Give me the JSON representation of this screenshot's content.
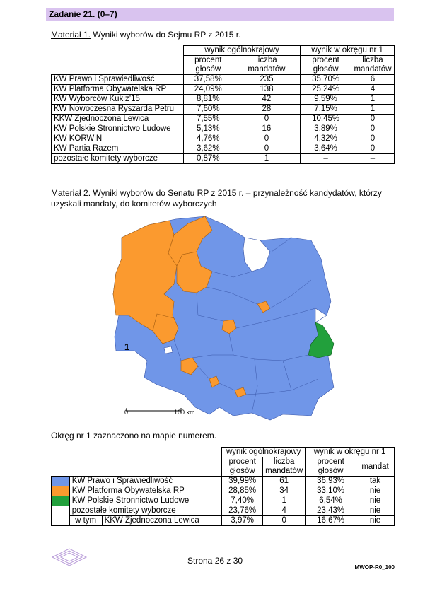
{
  "task": {
    "title": "Zadanie 21. (0–7)"
  },
  "material1": {
    "label": "Materiał 1.",
    "text": " Wyniki wyborów do Sejmu RP z 2015 r.",
    "header": {
      "group1": "wynik ogólnokrajowy",
      "group2": "wynik w okręgu nr 1"
    },
    "subheader": {
      "percent1_l1": "procent",
      "percent1_l2": "głosów",
      "seats1_l1": "liczba",
      "seats1_l2": "mandatów",
      "percent2_l1": "procent",
      "percent2_l2": "głosów",
      "seats2_l1": "liczba",
      "seats2_l2": "mandatów"
    },
    "rows": [
      {
        "name": "KW Prawo i Sprawiedliwość",
        "pct": "37,58%",
        "seats": "235",
        "pct_d": "35,70%",
        "seats_d": "6"
      },
      {
        "name": "KW Platforma Obywatelska RP",
        "pct": "24,09%",
        "seats": "138",
        "pct_d": "25,24%",
        "seats_d": "4"
      },
      {
        "name": "KW Wyborców Kukiz’15",
        "pct": "8,81%",
        "seats": "42",
        "pct_d": "9,59%",
        "seats_d": "1"
      },
      {
        "name": "KW Nowoczesna Ryszarda Petru",
        "pct": "7,60%",
        "seats": "28",
        "pct_d": "7,15%",
        "seats_d": "1"
      },
      {
        "name": "KKW Zjednoczona Lewica",
        "pct": "7,55%",
        "seats": "0",
        "pct_d": "10,45%",
        "seats_d": "0"
      },
      {
        "name": "KW Polskie Stronnictwo Ludowe",
        "pct": "5,13%",
        "seats": "16",
        "pct_d": "3,89%",
        "seats_d": "0"
      },
      {
        "name": "KW KORWiN",
        "pct": "4,76%",
        "seats": "0",
        "pct_d": "4,32%",
        "seats_d": "0"
      },
      {
        "name": "KW Partia Razem",
        "pct": "3,62%",
        "seats": "0",
        "pct_d": "3,64%",
        "seats_d": "0"
      },
      {
        "name": "pozostałe komitety wyborcze",
        "pct": "0,87%",
        "seats": "1",
        "pct_d": "–",
        "seats_d": "–"
      }
    ]
  },
  "material2": {
    "label": "Materiał 2.",
    "text_l1": " Wyniki wyborów do Senatu RP z 2015 r. – przynależność kandydatów, którzy",
    "text_l2": "uzyskali mandaty, do komitetów wyborczych",
    "district_marker": "1",
    "scale_start": "0",
    "scale_end": "100 km",
    "colors": {
      "pis": "#7096e8",
      "po": "#fb9a2f",
      "psl": "#22a03c",
      "other": "#ffffff"
    }
  },
  "okreg_note": "Okręg nr 1 zaznaczono na mapie numerem.",
  "table2": {
    "header": {
      "group1": "wynik ogólnokrajowy",
      "group2": "wynik w okręgu nr 1"
    },
    "subheader": {
      "pct1_l1": "procent",
      "pct1_l2": "głosów",
      "seats1_l1": "liczba",
      "seats1_l2": "mandatów",
      "pct2_l1": "procent",
      "pct2_l2": "głosów",
      "mandat": "mandat"
    },
    "rows": [
      {
        "name": "KW Prawo i Sprawiedliwość",
        "color": "#7096e8",
        "pct": "39,99%",
        "seats": "61",
        "pct_d": "36,93%",
        "mandat": "tak"
      },
      {
        "name": "KW Platforma Obywatelska RP",
        "color": "#fb9a2f",
        "pct": "28,85%",
        "seats": "34",
        "pct_d": "33,10%",
        "mandat": "nie"
      },
      {
        "name": "KW Polskie Stronnictwo Ludowe",
        "color": "#22a03c",
        "pct": "7,40%",
        "seats": "1",
        "pct_d": "6,54%",
        "mandat": "nie"
      },
      {
        "name": "pozostałe komitety wyborcze",
        "color": "#ffffff",
        "pct": "23,76%",
        "seats": "4",
        "pct_d": "23,43%",
        "mandat": "nie"
      }
    ],
    "subrow": {
      "prefix": "w tym",
      "name": "KKW Zjednoczona Lewica",
      "pct": "3,97%",
      "seats": "0",
      "pct_d": "16,67%",
      "mandat": "nie"
    }
  },
  "footer": {
    "page": "Strona 26 z 30",
    "code": "MWOP-R0_100"
  }
}
